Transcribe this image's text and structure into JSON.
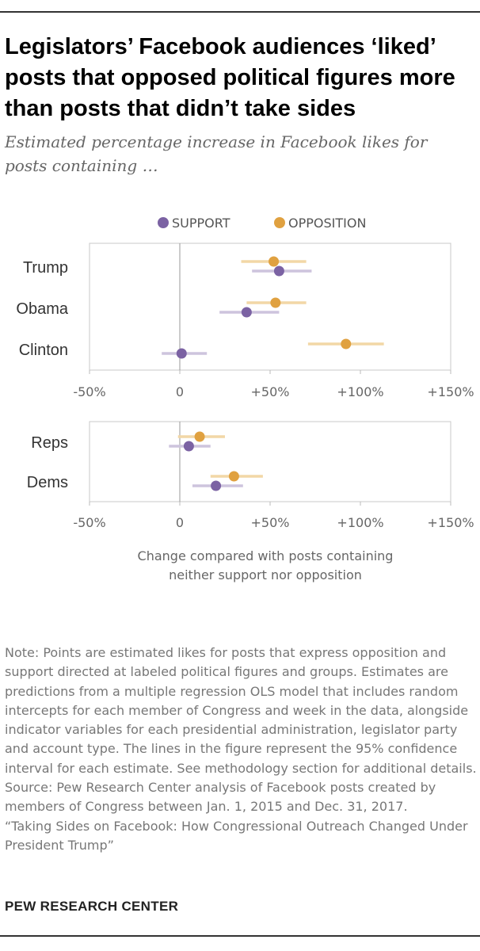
{
  "title": "Legislators’ Facebook audiences ‘liked’ posts that opposed political figures more than posts that didn’t take sides",
  "subtitle": "Estimated percentage increase in Facebook likes for posts containing …",
  "colors": {
    "support": "#7b62a3",
    "opposition": "#e0a140",
    "support_ci": "#cdc4dd",
    "opposition_ci": "#f2d7a6"
  },
  "chart_data": {
    "type": "scatter",
    "legend": {
      "position": "top",
      "entries": [
        "SUPPORT",
        "OPPOSITION"
      ]
    },
    "xlim": [
      -50,
      150
    ],
    "x_ticks": [
      -50,
      0,
      50,
      100,
      150
    ],
    "x_tick_labels": [
      "-50%",
      "0",
      "+50%",
      "+100%",
      "+150%"
    ],
    "xlabel": "Change compared with posts containing neither support nor opposition",
    "panels": [
      {
        "categories": [
          "Trump",
          "Obama",
          "Clinton"
        ],
        "series": [
          {
            "name": "OPPOSITION",
            "values": [
              52,
              53,
              92
            ],
            "ci_low": [
              34,
              37,
              71
            ],
            "ci_high": [
              70,
              70,
              113
            ]
          },
          {
            "name": "SUPPORT",
            "values": [
              55,
              37,
              1
            ],
            "ci_low": [
              40,
              22,
              -10
            ],
            "ci_high": [
              73,
              55,
              15
            ]
          }
        ]
      },
      {
        "categories": [
          "Reps",
          "Dems"
        ],
        "series": [
          {
            "name": "OPPOSITION",
            "values": [
              11,
              30
            ],
            "ci_low": [
              -1,
              17
            ],
            "ci_high": [
              25,
              46
            ]
          },
          {
            "name": "SUPPORT",
            "values": [
              5,
              20
            ],
            "ci_low": [
              -6,
              7
            ],
            "ci_high": [
              17,
              35
            ]
          }
        ]
      }
    ]
  },
  "note": {
    "text": "Note: Points are estimated likes for posts that express opposition and support directed at labeled political figures and groups. Estimates are predictions from a multiple regression OLS model that includes random intercepts for each member of Congress and week in the data, alongside indicator variables for each presidential administration, legislator party and account type. The lines in the figure represent the 95% confidence interval for each estimate. See methodology section for additional details.",
    "source": "Source: Pew Research Center analysis of Facebook posts created by members of Congress between Jan. 1, 2015 and Dec. 31, 2017.",
    "report": "“Taking Sides on Facebook: How Congressional Outreach Changed Under President Trump”"
  },
  "brand": "PEW RESEARCH CENTER"
}
